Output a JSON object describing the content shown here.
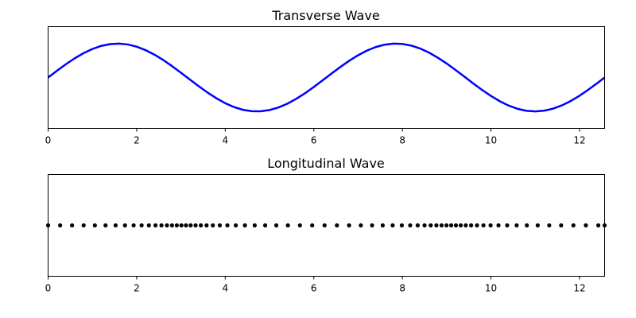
{
  "chart_data": [
    {
      "type": "line",
      "title": "Transverse Wave",
      "xlabel": "",
      "ylabel": "",
      "xlim": [
        0,
        12.566
      ],
      "ylim": [
        -1.5,
        1.5
      ],
      "y_ticks_visible": false,
      "grid": false,
      "x_ticks": [
        0,
        2,
        4,
        6,
        8,
        10,
        12
      ],
      "x_tick_labels": [
        "0",
        "2",
        "4",
        "6",
        "8",
        "10",
        "12"
      ],
      "color": "#0000ff",
      "x": [
        0,
        0.2,
        0.4,
        0.6,
        0.8,
        1.0,
        1.2,
        1.4,
        1.6,
        1.8,
        2.0,
        2.2,
        2.4,
        2.6,
        2.8,
        3.0,
        3.2,
        3.4,
        3.6,
        3.8,
        4.0,
        4.2,
        4.4,
        4.6,
        4.8,
        5.0,
        5.2,
        5.4,
        5.6,
        5.8,
        6.0,
        6.2,
        6.4,
        6.6,
        6.8,
        7.0,
        7.2,
        7.4,
        7.6,
        7.8,
        8.0,
        8.2,
        8.4,
        8.6,
        8.8,
        9.0,
        9.2,
        9.4,
        9.6,
        9.8,
        10.0,
        10.2,
        10.4,
        10.6,
        10.8,
        11.0,
        11.2,
        11.4,
        11.6,
        11.8,
        12.0,
        12.2,
        12.4,
        12.566
      ],
      "y": [
        0.0,
        0.199,
        0.389,
        0.565,
        0.717,
        0.841,
        0.932,
        0.985,
        1.0,
        0.974,
        0.909,
        0.808,
        0.675,
        0.516,
        0.335,
        0.141,
        -0.058,
        -0.256,
        -0.443,
        -0.612,
        -0.757,
        -0.872,
        -0.952,
        -0.994,
        -0.996,
        -0.959,
        -0.883,
        -0.773,
        -0.631,
        -0.465,
        -0.279,
        -0.083,
        0.117,
        0.312,
        0.494,
        0.657,
        0.794,
        0.899,
        0.968,
        0.999,
        0.989,
        0.941,
        0.855,
        0.735,
        0.585,
        0.412,
        0.223,
        0.025,
        -0.175,
        -0.366,
        -0.544,
        -0.7,
        -0.828,
        -0.923,
        -0.981,
        -1.0,
        -0.979,
        -0.919,
        -0.822,
        -0.694,
        -0.537,
        -0.358,
        -0.166,
        0.0
      ]
    },
    {
      "type": "scatter",
      "title": "Longitudinal Wave",
      "xlabel": "",
      "ylabel": "",
      "xlim": [
        0,
        12.566
      ],
      "ylim": [
        -1,
        1
      ],
      "y_ticks_visible": false,
      "grid": false,
      "x_ticks": [
        0,
        2,
        4,
        6,
        8,
        10,
        12
      ],
      "x_tick_labels": [
        "0",
        "2",
        "4",
        "6",
        "8",
        "10",
        "12"
      ],
      "color": "#000000",
      "x": [
        0.0,
        0.272,
        0.541,
        0.803,
        1.056,
        1.297,
        1.524,
        1.736,
        1.932,
        2.112,
        2.276,
        2.425,
        2.56,
        2.684,
        2.798,
        2.906,
        3.01,
        3.113,
        3.219,
        3.33,
        3.449,
        3.578,
        3.72,
        3.877,
        4.049,
        4.238,
        4.444,
        4.665,
        4.902,
        5.153,
        5.415,
        5.686,
        5.963,
        6.243,
        6.522,
        6.796,
        7.062,
        7.316,
        7.556,
        7.78,
        7.987,
        8.176,
        8.346,
        8.5,
        8.64,
        8.768,
        8.885,
        8.996,
        9.103,
        9.209,
        9.317,
        9.431,
        9.552,
        9.685,
        9.831,
        9.992,
        10.17,
        10.366,
        10.58,
        10.81,
        11.056,
        11.316,
        11.585,
        11.862,
        12.143,
        12.424,
        12.566
      ],
      "y": [
        0,
        0,
        0,
        0,
        0,
        0,
        0,
        0,
        0,
        0,
        0,
        0,
        0,
        0,
        0,
        0,
        0,
        0,
        0,
        0,
        0,
        0,
        0,
        0,
        0,
        0,
        0,
        0,
        0,
        0,
        0,
        0,
        0,
        0,
        0,
        0,
        0,
        0,
        0,
        0,
        0,
        0,
        0,
        0,
        0,
        0,
        0,
        0,
        0,
        0,
        0,
        0,
        0,
        0,
        0,
        0,
        0,
        0,
        0,
        0,
        0,
        0,
        0,
        0,
        0,
        0,
        0
      ]
    }
  ]
}
